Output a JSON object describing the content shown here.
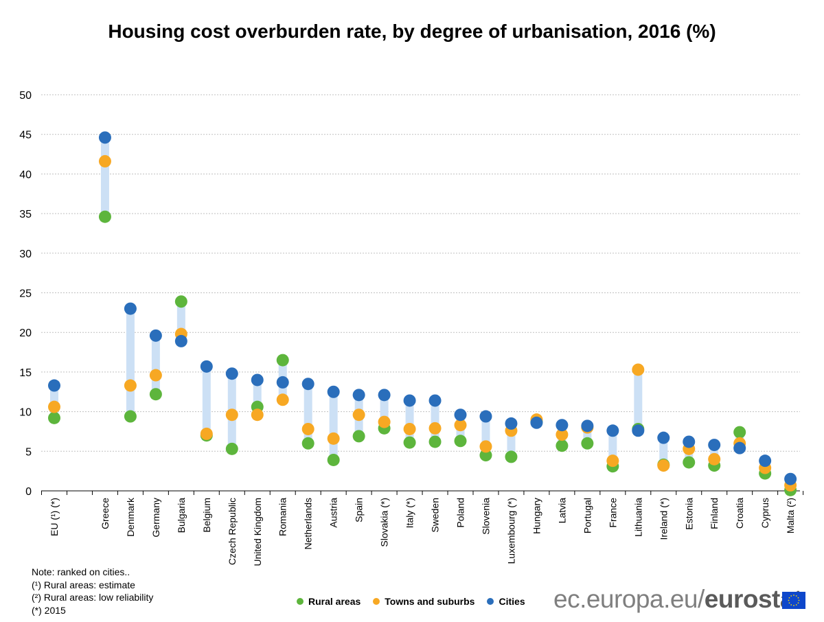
{
  "chart_data": {
    "type": "scatter",
    "title": "Housing cost overburden rate, by degree of urbanisation, 2016 (%)",
    "xlabel": "",
    "ylabel": "",
    "ylim": [
      0,
      50
    ],
    "yticks": [
      0,
      5,
      10,
      15,
      20,
      25,
      30,
      35,
      40,
      45,
      50
    ],
    "grid": true,
    "categories": [
      "EU (¹) (*)",
      "",
      "Greece",
      "Denmark",
      "Germany",
      "Bulgaria",
      "Belgium",
      "Czech Republic",
      "United Kingdom",
      "Romania",
      "Netherlands",
      "Austria",
      "Spain",
      "Slovakia (*)",
      "Italy (*)",
      "Sweden",
      "Poland",
      "Slovenia",
      "Luxembourg (*)",
      "Hungary",
      "Latvia",
      "Portugal",
      "France",
      "Lithuania",
      "Ireland (*)",
      "Estonia",
      "Finland",
      "Croatia",
      "Cyprus",
      "Malta (²)"
    ],
    "series": [
      {
        "name": "Rural areas",
        "color": "#5db53c",
        "values": [
          9.2,
          null,
          34.6,
          9.4,
          12.2,
          23.9,
          7.0,
          5.3,
          10.6,
          16.5,
          6.0,
          3.9,
          6.9,
          7.9,
          6.1,
          6.2,
          6.3,
          4.5,
          4.3,
          8.7,
          5.7,
          6.0,
          3.1,
          7.8,
          3.3,
          3.6,
          3.2,
          7.4,
          2.2,
          0.1
        ]
      },
      {
        "name": "Towns and suburbs",
        "color": "#f7a823",
        "values": [
          10.6,
          null,
          41.6,
          13.3,
          14.6,
          19.8,
          7.2,
          9.6,
          9.6,
          11.5,
          7.8,
          6.6,
          9.6,
          8.7,
          7.8,
          7.9,
          8.3,
          5.6,
          7.6,
          9.0,
          7.1,
          8.0,
          3.8,
          15.3,
          3.2,
          5.3,
          4.0,
          6.0,
          2.9,
          0.7
        ]
      },
      {
        "name": "Cities",
        "color": "#2a6ebb",
        "values": [
          13.3,
          null,
          44.6,
          23.0,
          19.6,
          18.9,
          15.7,
          14.8,
          14.0,
          13.7,
          13.5,
          12.5,
          12.1,
          12.1,
          11.4,
          11.4,
          9.6,
          9.4,
          8.5,
          8.6,
          8.3,
          8.2,
          7.6,
          7.6,
          6.7,
          6.2,
          5.8,
          5.4,
          3.8,
          1.5
        ]
      }
    ],
    "range_bar_color": "#cce0f5"
  },
  "notes": [
    "Note: ranked on cities..",
    "(¹) Rural areas: estimate",
    "(²) Rural areas: low reliability",
    "(*) 2015"
  ],
  "legend": {
    "rural": "Rural areas",
    "towns": "Towns and suburbs",
    "cities": "Cities"
  },
  "brand": {
    "prefix": "ec.europa.eu/",
    "name": "eurostat"
  }
}
